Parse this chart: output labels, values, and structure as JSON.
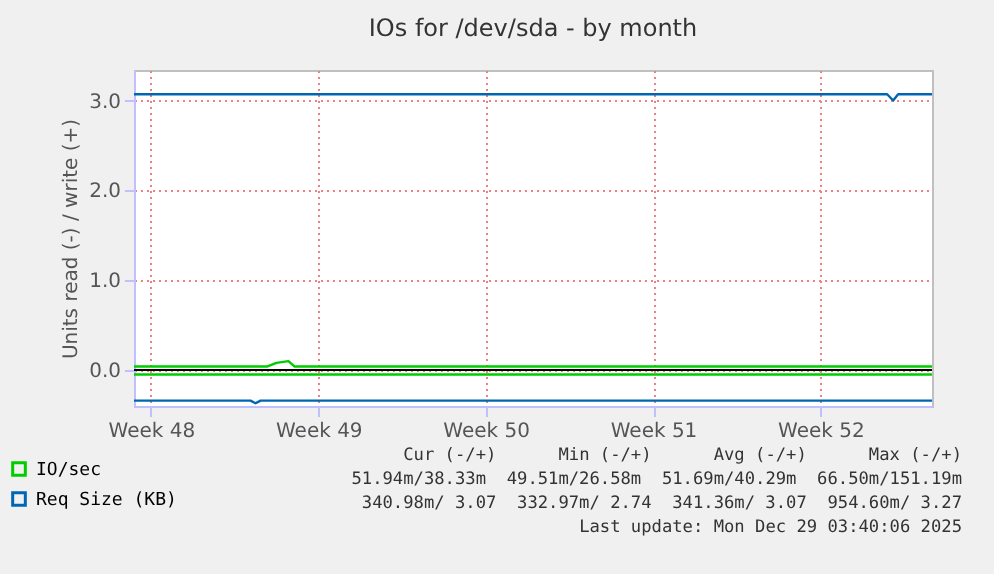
{
  "chart_data": {
    "type": "line",
    "title": "IOs for /dev/sda - by month",
    "ylabel": "Units read (-) / write (+)",
    "xlim": [
      "2025-11-26T19:00",
      "2025-12-30T04:00"
    ],
    "xticks": [
      {
        "value": "2025-11-27T12:00",
        "label": "Week 48"
      },
      {
        "value": "2025-12-04T12:00",
        "label": "Week 49"
      },
      {
        "value": "2025-12-11T12:00",
        "label": "Week 50"
      },
      {
        "value": "2025-12-18T12:00",
        "label": "Week 51"
      },
      {
        "value": "2025-12-25T12:00",
        "label": "Week 52"
      }
    ],
    "ylim": [
      -0.4,
      3.34
    ],
    "yticks": [
      {
        "value": 0,
        "label": "0.0"
      },
      {
        "value": 1,
        "label": "1.0"
      },
      {
        "value": 2,
        "label": "2.0"
      },
      {
        "value": 3,
        "label": "3.0"
      }
    ],
    "grid": true,
    "legend": "bottom left",
    "line_style": "solid",
    "ref_lines": [
      {
        "axis": "y",
        "value": 0,
        "color": "#000000"
      }
    ],
    "series": [
      {
        "name": "IO/sec",
        "color": "#00cc00",
        "x": [
          "2025-11-26T19:00",
          "2025-12-02T09:00",
          "2025-12-02T18:00",
          "2025-12-03T06:00",
          "2025-12-03T12:00",
          "2025-12-30T04:00"
        ],
        "values": [
          0.04,
          0.04,
          0.08,
          0.1,
          0.04,
          0.04
        ]
      },
      {
        "color": "#00cc00",
        "x": [
          "2025-11-26T19:00",
          "2025-12-30T04:00"
        ],
        "values": [
          -0.05,
          -0.05
        ]
      },
      {
        "name": "Req Size (KB)",
        "color": "#0066b3",
        "x": [
          "2025-11-26T19:00",
          "2025-12-28T07:00",
          "2025-12-28T13:00",
          "2025-12-28T18:00",
          "2025-12-30T04:00"
        ],
        "values": [
          3.07,
          3.07,
          3.0,
          3.07,
          3.07
        ]
      },
      {
        "color": "#0066b3",
        "x": [
          "2025-11-26T19:00",
          "2025-12-01T16:00",
          "2025-12-01T21:00",
          "2025-12-02T02:00",
          "2025-12-30T04:00"
        ],
        "values": [
          -0.34,
          -0.34,
          -0.37,
          -0.34,
          -0.34
        ]
      }
    ],
    "annotations": [
      "Cur (-/+)      Min (-/+)      Avg (-/+)      Max (-/+)",
      "51.94m/38.33m  49.51m/26.58m  51.69m/40.29m  66.50m/151.19m",
      "340.98m/ 3.07  332.97m/ 2.74  341.36m/ 3.07  954.60m/ 3.27",
      "Last update: Mon Dec 29 03:40:06 2025"
    ]
  }
}
